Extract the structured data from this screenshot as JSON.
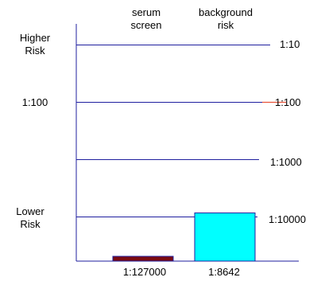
{
  "chart_data": {
    "type": "bar",
    "scale": "log",
    "y_axis_labels": [
      {
        "id": "higher",
        "text": [
          "Higher",
          "Risk"
        ]
      },
      {
        "id": "100",
        "text": [
          "1:100"
        ]
      },
      {
        "id": "lower",
        "text": [
          "Lower",
          "Risk"
        ]
      }
    ],
    "reference_lines": [
      {
        "label": "1:10",
        "odds": 10
      },
      {
        "label": "1:100",
        "odds": 100
      },
      {
        "label": "1:1000",
        "odds": 1000
      },
      {
        "label": "1:10000",
        "odds": 10000
      }
    ],
    "series": [
      {
        "name": [
          "serum",
          "screen"
        ],
        "value_label": "1:127000",
        "odds": 127000,
        "color": "#7a0a10"
      },
      {
        "name": [
          "background",
          "risk"
        ],
        "value_label": "1:8642",
        "odds": 8642,
        "color": "#00ffff"
      }
    ],
    "axis_color": "#1f1f9f",
    "highlight_line_color": "#e8543a",
    "grid": false,
    "legend": "none"
  }
}
